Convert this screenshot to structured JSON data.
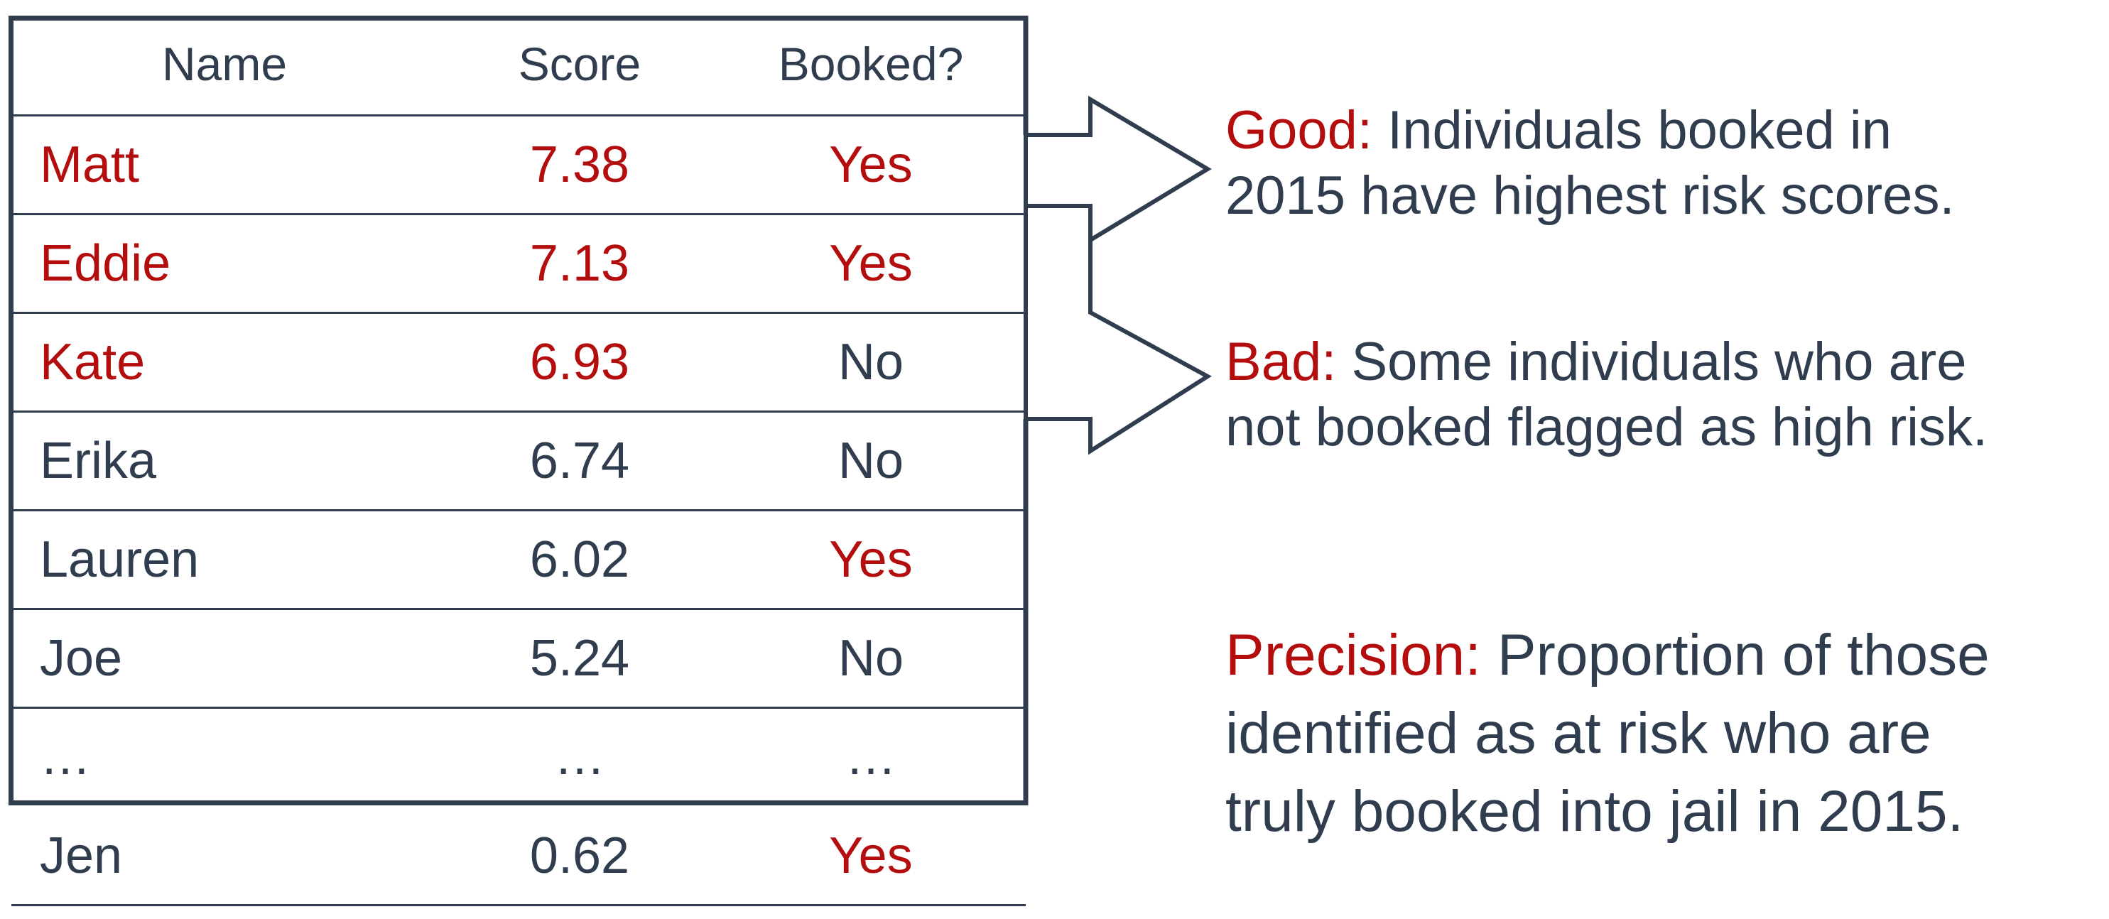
{
  "table": {
    "headers": {
      "name": "Name",
      "score": "Score",
      "booked": "Booked?"
    },
    "rows": [
      {
        "name": "Matt",
        "score": "7.38",
        "booked": "Yes",
        "highlighted": true,
        "booked_yes": true
      },
      {
        "name": "Eddie",
        "score": "7.13",
        "booked": "Yes",
        "highlighted": true,
        "booked_yes": true
      },
      {
        "name": "Kate",
        "score": "6.93",
        "booked": "No",
        "highlighted": true,
        "booked_yes": false
      },
      {
        "name": "Erika",
        "score": "6.74",
        "booked": "No",
        "highlighted": false,
        "booked_yes": false
      },
      {
        "name": "Lauren",
        "score": "6.02",
        "booked": "Yes",
        "highlighted": false,
        "booked_yes": true
      },
      {
        "name": "Joe",
        "score": "5.24",
        "booked": "No",
        "highlighted": false,
        "booked_yes": false
      },
      {
        "name": "…",
        "score": "…",
        "booked": "…",
        "highlighted": false,
        "booked_yes": false
      },
      {
        "name": "Jen",
        "score": "0.62",
        "booked": "Yes",
        "highlighted": false,
        "booked_yes": true
      }
    ]
  },
  "notes": {
    "good": {
      "lead": "Good:",
      "line1": " Individuals booked in",
      "line2": "2015 have highest risk scores."
    },
    "bad": {
      "lead": "Bad:",
      "line1": " Some individuals who are",
      "line2": "not booked flagged as high risk."
    },
    "precision": {
      "lead": "Precision:",
      "line1": " Proportion of those",
      "line2": "identified as at risk who are",
      "line3": "truly booked into jail in 2015."
    }
  },
  "colors": {
    "text": "#2f3d4f",
    "accent": "#b30d0d"
  }
}
